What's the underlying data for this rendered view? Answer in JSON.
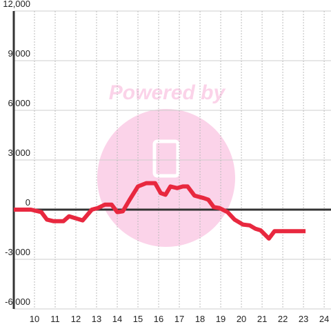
{
  "chart_data": {
    "type": "line",
    "watermark": "Powered by",
    "x": [
      9.0,
      9.83,
      10.33,
      10.6,
      10.93,
      11.4,
      11.67,
      12.33,
      12.77,
      13.07,
      13.4,
      13.73,
      14.0,
      14.27,
      14.6,
      15.0,
      15.4,
      15.83,
      16.1,
      16.33,
      16.57,
      16.9,
      17.17,
      17.4,
      17.73,
      18.17,
      18.4,
      18.67,
      18.93,
      19.33,
      19.67,
      20.07,
      20.4,
      20.67,
      20.93,
      21.33,
      21.6,
      23.1
    ],
    "series": [
      {
        "color": "#e8283f",
        "values": [
          0,
          0,
          -150,
          -600,
          -700,
          -700,
          -400,
          -650,
          0,
          100,
          300,
          300,
          -150,
          -100,
          600,
          1400,
          1600,
          1600,
          1000,
          900,
          1400,
          1300,
          1400,
          1400,
          850,
          700,
          600,
          150,
          100,
          -150,
          -600,
          -900,
          -950,
          -1150,
          -1250,
          -1750,
          -1300,
          -1300
        ]
      }
    ],
    "xlim": [
      9,
      24.33
    ],
    "xticks": [
      10,
      11,
      12,
      13,
      14,
      15,
      16,
      17,
      18,
      19,
      20,
      21,
      22,
      23,
      24
    ],
    "ylim": [
      -6000,
      12000
    ],
    "yticks": [
      {
        "value": -6000,
        "label": "-6,000"
      },
      {
        "value": -3000,
        "label": "-3,000"
      },
      0,
      {
        "value": 3000,
        "label": "3,000"
      },
      {
        "value": 6000,
        "label": "6,000"
      },
      {
        "value": 9000,
        "label": "9,000"
      },
      {
        "value": 12000,
        "label": "12,000"
      }
    ],
    "grid": true
  }
}
